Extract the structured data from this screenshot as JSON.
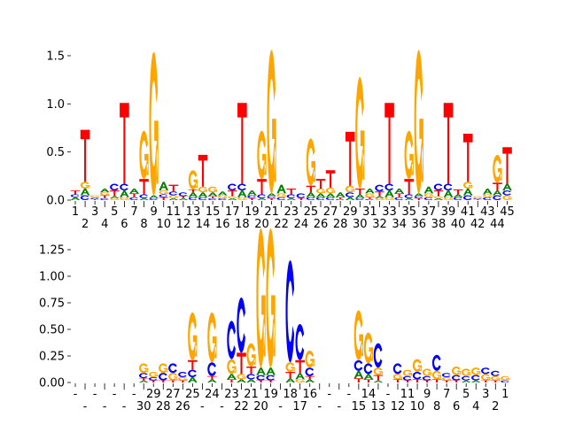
{
  "colors": {
    "A": "#008000",
    "C": "#0000ff",
    "G": "#ffa500",
    "T": "#ff0000"
  },
  "chart_data": [
    {
      "type": "sequence-logo",
      "ylim": [
        0,
        1.6
      ],
      "yticks": [
        0,
        0.5,
        1.0,
        1.5
      ],
      "ytick_labels": [
        "0.0",
        "0.5",
        "1.0",
        "1.5"
      ],
      "xtick_labels": [
        "1",
        "2",
        "3",
        "4",
        "5",
        "6",
        "7",
        "8",
        "9",
        "10",
        "11",
        "12",
        "13",
        "14",
        "15",
        "16",
        "17",
        "18",
        "19",
        "20",
        "21",
        "22",
        "23",
        "24",
        "25",
        "26",
        "27",
        "28",
        "29",
        "30",
        "31",
        "32",
        "33",
        "34",
        "35",
        "36",
        "37",
        "38",
        "39",
        "40",
        "41",
        "42",
        "43",
        "44",
        "45"
      ],
      "columns": [
        [
          [
            "A",
            0.03
          ],
          [
            "C",
            0.03
          ],
          [
            "T",
            0.04
          ]
        ],
        [
          [
            "C",
            0.05
          ],
          [
            "A",
            0.07
          ],
          [
            "G",
            0.07
          ],
          [
            "T",
            0.54
          ]
        ],
        [
          [
            "T",
            0.01
          ],
          [
            "C",
            0.01
          ],
          [
            "A",
            0.01
          ],
          [
            "G",
            0.02
          ]
        ],
        [
          [
            "C",
            0.02
          ],
          [
            "T",
            0.03
          ],
          [
            "G",
            0.03
          ],
          [
            "A",
            0.04
          ]
        ],
        [
          [
            "G",
            0.02
          ],
          [
            "A",
            0.02
          ],
          [
            "T",
            0.06
          ],
          [
            "C",
            0.07
          ]
        ],
        [
          [
            "G",
            0.03
          ],
          [
            "A",
            0.07
          ],
          [
            "C",
            0.07
          ],
          [
            "T",
            0.84
          ]
        ],
        [
          [
            "C",
            0.03
          ],
          [
            "T",
            0.04
          ],
          [
            "A",
            0.05
          ]
        ],
        [
          [
            "A",
            0.02
          ],
          [
            "C",
            0.04
          ],
          [
            "T",
            0.16
          ],
          [
            "G",
            0.5
          ]
        ],
        [
          [
            "C",
            0.02
          ],
          [
            "A",
            0.03
          ],
          [
            "G",
            1.49
          ]
        ],
        [
          [
            "T",
            0.03
          ],
          [
            "C",
            0.03
          ],
          [
            "G",
            0.04
          ],
          [
            "A",
            0.09
          ]
        ],
        [
          [
            "A",
            0.02
          ],
          [
            "G",
            0.03
          ],
          [
            "C",
            0.04
          ],
          [
            "T",
            0.07
          ]
        ],
        [
          [
            "A",
            0.02
          ],
          [
            "T",
            0.02
          ],
          [
            "C",
            0.04
          ]
        ],
        [
          [
            "C",
            0.03
          ],
          [
            "A",
            0.05
          ],
          [
            "T",
            0.03
          ],
          [
            "G",
            0.2
          ]
        ],
        [
          [
            "C",
            0.03
          ],
          [
            "A",
            0.05
          ],
          [
            "G",
            0.06
          ],
          [
            "T",
            0.33
          ]
        ],
        [
          [
            "C",
            0.02
          ],
          [
            "T",
            0.02
          ],
          [
            "A",
            0.04
          ],
          [
            "G",
            0.06
          ]
        ],
        [
          [
            "C",
            0.02
          ],
          [
            "G",
            0.03
          ],
          [
            "A",
            0.04
          ]
        ],
        [
          [
            "A",
            0.02
          ],
          [
            "G",
            0.02
          ],
          [
            "T",
            0.06
          ],
          [
            "C",
            0.07
          ]
        ],
        [
          [
            "G",
            0.03
          ],
          [
            "A",
            0.07
          ],
          [
            "C",
            0.07
          ],
          [
            "T",
            0.84
          ]
        ],
        [
          [
            "T",
            0.02
          ],
          [
            "C",
            0.03
          ],
          [
            "A",
            0.05
          ]
        ],
        [
          [
            "A",
            0.02
          ],
          [
            "C",
            0.04
          ],
          [
            "T",
            0.16
          ],
          [
            "G",
            0.5
          ]
        ],
        [
          [
            "T",
            0.02
          ],
          [
            "C",
            0.02
          ],
          [
            "A",
            0.03
          ],
          [
            "G",
            1.49
          ]
        ],
        [
          [
            "C",
            0.03
          ],
          [
            "G",
            0.04
          ],
          [
            "A",
            0.09
          ]
        ],
        [
          [
            "A",
            0.02
          ],
          [
            "C",
            0.04
          ],
          [
            "T",
            0.06
          ]
        ],
        [
          [
            "T",
            0.02
          ],
          [
            "C",
            0.05
          ]
        ],
        [
          [
            "C",
            0.03
          ],
          [
            "A",
            0.05
          ],
          [
            "T",
            0.07
          ],
          [
            "G",
            0.49
          ]
        ],
        [
          [
            "C",
            0.03
          ],
          [
            "A",
            0.04
          ],
          [
            "G",
            0.05
          ],
          [
            "T",
            0.1
          ]
        ],
        [
          [
            "C",
            0.03
          ],
          [
            "A",
            0.04
          ],
          [
            "G",
            0.06
          ],
          [
            "T",
            0.18
          ]
        ],
        [
          [
            "C",
            0.01
          ],
          [
            "T",
            0.02
          ],
          [
            "A",
            0.05
          ]
        ],
        [
          [
            "A",
            0.03
          ],
          [
            "C",
            0.05
          ],
          [
            "G",
            0.07
          ],
          [
            "T",
            0.56
          ]
        ],
        [
          [
            "C",
            0.02
          ],
          [
            "A",
            0.04
          ],
          [
            "T",
            0.06
          ],
          [
            "G",
            1.16
          ]
        ],
        [
          [
            "C",
            0.01
          ],
          [
            "T",
            0.02
          ],
          [
            "G",
            0.04
          ],
          [
            "A",
            0.05
          ]
        ],
        [
          [
            "G",
            0.02
          ],
          [
            "A",
            0.02
          ],
          [
            "T",
            0.05
          ],
          [
            "C",
            0.07
          ]
        ],
        [
          [
            "G",
            0.03
          ],
          [
            "A",
            0.07
          ],
          [
            "C",
            0.07
          ],
          [
            "T",
            0.84
          ]
        ],
        [
          [
            "C",
            0.03
          ],
          [
            "T",
            0.04
          ],
          [
            "A",
            0.05
          ]
        ],
        [
          [
            "A",
            0.02
          ],
          [
            "C",
            0.04
          ],
          [
            "T",
            0.16
          ],
          [
            "G",
            0.5
          ]
        ],
        [
          [
            "T",
            0.02
          ],
          [
            "C",
            0.02
          ],
          [
            "A",
            0.03
          ],
          [
            "G",
            1.49
          ]
        ],
        [
          [
            "C",
            0.03
          ],
          [
            "G",
            0.04
          ],
          [
            "A",
            0.07
          ]
        ],
        [
          [
            "A",
            0.02
          ],
          [
            "G",
            0.02
          ],
          [
            "T",
            0.06
          ],
          [
            "C",
            0.07
          ]
        ],
        [
          [
            "G",
            0.03
          ],
          [
            "A",
            0.07
          ],
          [
            "C",
            0.07
          ],
          [
            "T",
            0.84
          ]
        ],
        [
          [
            "C",
            0.03
          ],
          [
            "A",
            0.03
          ],
          [
            "T",
            0.05
          ]
        ],
        [
          [
            "C",
            0.05
          ],
          [
            "A",
            0.07
          ],
          [
            "G",
            0.07
          ],
          [
            "T",
            0.5
          ]
        ],
        [
          [
            "T",
            0.01
          ],
          [
            "C",
            0.01
          ],
          [
            "G",
            0.02
          ]
        ],
        [
          [
            "C",
            0.03
          ],
          [
            "G",
            0.03
          ],
          [
            "A",
            0.06
          ]
        ],
        [
          [
            "C",
            0.05
          ],
          [
            "A",
            0.05
          ],
          [
            "T",
            0.08
          ],
          [
            "G",
            0.29
          ]
        ],
        [
          [
            "G",
            0.05
          ],
          [
            "C",
            0.05
          ],
          [
            "A",
            0.07
          ],
          [
            "T",
            0.38
          ]
        ]
      ]
    },
    {
      "type": "sequence-logo",
      "ylim": [
        0,
        1.4
      ],
      "yticks": [
        0,
        0.25,
        0.5,
        0.75,
        1.0,
        1.25
      ],
      "ytick_labels": [
        "0.00",
        "0.25",
        "0.50",
        "0.75",
        "1.00",
        "1.25"
      ],
      "xtick_labels": [
        "-",
        "-",
        "-",
        "-",
        "-",
        "-",
        "-",
        "30",
        "29",
        "28",
        "27",
        "26",
        "25",
        "-",
        "24",
        "-",
        "23",
        "22",
        "21",
        "20",
        "19",
        "-",
        "18",
        "17",
        "16",
        "-",
        "-",
        "-",
        "-",
        "15",
        "14",
        "13",
        "-",
        "12",
        "11",
        "10",
        "9",
        "8",
        "7",
        "6",
        "5",
        "4",
        "3",
        "2",
        "1"
      ],
      "columns": [
        [],
        [],
        [],
        [],
        [],
        [],
        [],
        [
          [
            "A",
            0.02
          ],
          [
            "T",
            0.02
          ],
          [
            "C",
            0.05
          ],
          [
            "G",
            0.09
          ]
        ],
        [
          [
            "T",
            0.02
          ],
          [
            "C",
            0.03
          ],
          [
            "G",
            0.05
          ]
        ],
        [
          [
            "T",
            0.02
          ],
          [
            "C",
            0.07
          ],
          [
            "G",
            0.09
          ]
        ],
        [
          [
            "T",
            0.02
          ],
          [
            "G",
            0.07
          ],
          [
            "C",
            0.09
          ]
        ],
        [
          [
            "T",
            0.02
          ],
          [
            "G",
            0.03
          ],
          [
            "C",
            0.05
          ]
        ],
        [
          [
            "A",
            0.05
          ],
          [
            "C",
            0.07
          ],
          [
            "T",
            0.09
          ],
          [
            "G",
            0.45
          ]
        ],
        [],
        [
          [
            "A",
            0.03
          ],
          [
            "T",
            0.03
          ],
          [
            "C",
            0.13
          ],
          [
            "G",
            0.47
          ]
        ],
        [],
        [
          [
            "T",
            0.03
          ],
          [
            "A",
            0.05
          ],
          [
            "G",
            0.14
          ],
          [
            "C",
            0.36
          ]
        ],
        [
          [
            "A",
            0.03
          ],
          [
            "G",
            0.05
          ],
          [
            "T",
            0.2
          ],
          [
            "C",
            0.52
          ]
        ],
        [
          [
            "A",
            0.03
          ],
          [
            "C",
            0.05
          ],
          [
            "T",
            0.07
          ],
          [
            "G",
            0.22
          ]
        ],
        [
          [
            "T",
            0.02
          ],
          [
            "C",
            0.05
          ],
          [
            "A",
            0.07
          ],
          [
            "G",
            1.31
          ]
        ],
        [
          [
            "T",
            0.02
          ],
          [
            "C",
            0.05
          ],
          [
            "A",
            0.07
          ],
          [
            "G",
            1.31
          ]
        ],
        [],
        [
          [
            "A",
            0.04
          ],
          [
            "T",
            0.06
          ],
          [
            "G",
            0.09
          ],
          [
            "C",
            0.96
          ]
        ],
        [
          [
            "G",
            0.03
          ],
          [
            "A",
            0.06
          ],
          [
            "T",
            0.12
          ],
          [
            "C",
            0.34
          ]
        ],
        [
          [
            "A",
            0.03
          ],
          [
            "T",
            0.03
          ],
          [
            "C",
            0.08
          ],
          [
            "G",
            0.16
          ]
        ],
        [],
        [],
        [],
        [],
        [
          [
            "T",
            0.04
          ],
          [
            "A",
            0.07
          ],
          [
            "C",
            0.1
          ],
          [
            "G",
            0.47
          ]
        ],
        [
          [
            "T",
            0.03
          ],
          [
            "A",
            0.05
          ],
          [
            "C",
            0.1
          ],
          [
            "G",
            0.29
          ]
        ],
        [
          [
            "A",
            0.02
          ],
          [
            "T",
            0.05
          ],
          [
            "G",
            0.07
          ],
          [
            "C",
            0.23
          ]
        ],
        [],
        [
          [
            "T",
            0.03
          ],
          [
            "G",
            0.05
          ],
          [
            "C",
            0.1
          ]
        ],
        [
          [
            "T",
            0.02
          ],
          [
            "C",
            0.04
          ],
          [
            "G",
            0.06
          ]
        ],
        [
          [
            "T",
            0.03
          ],
          [
            "C",
            0.07
          ],
          [
            "G",
            0.12
          ]
        ],
        [
          [
            "T",
            0.02
          ],
          [
            "C",
            0.04
          ],
          [
            "G",
            0.07
          ]
        ],
        [
          [
            "T",
            0.03
          ],
          [
            "G",
            0.08
          ],
          [
            "C",
            0.15
          ]
        ],
        [
          [
            "T",
            0.02
          ],
          [
            "G",
            0.03
          ],
          [
            "C",
            0.04
          ]
        ],
        [
          [
            "T",
            0.02
          ],
          [
            "C",
            0.05
          ],
          [
            "G",
            0.08
          ]
        ],
        [
          [
            "A",
            0.02
          ],
          [
            "C",
            0.04
          ],
          [
            "G",
            0.07
          ]
        ],
        [
          [
            "A",
            0.02
          ],
          [
            "C",
            0.05
          ],
          [
            "G",
            0.07
          ]
        ],
        [
          [
            "T",
            0.02
          ],
          [
            "G",
            0.06
          ],
          [
            "C",
            0.06
          ]
        ],
        [
          [
            "T",
            0.02
          ],
          [
            "G",
            0.04
          ],
          [
            "C",
            0.05
          ]
        ],
        [
          [
            "C",
            0.02
          ],
          [
            "G",
            0.04
          ]
        ]
      ]
    }
  ]
}
